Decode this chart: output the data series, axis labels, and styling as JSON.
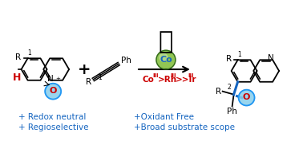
{
  "bg_color": "#ffffff",
  "blue_color": "#1565C0",
  "red_color": "#CC0000",
  "dark_color": "#000000",
  "text_bottom_left_1": "+ Redox neutral",
  "text_bottom_left_2": "+ Regioselective",
  "text_bottom_mid_1": "+Oxidant Free",
  "text_bottom_mid_2": "+Broad substrate scope",
  "figsize": [
    3.78,
    1.77
  ],
  "dpi": 100
}
